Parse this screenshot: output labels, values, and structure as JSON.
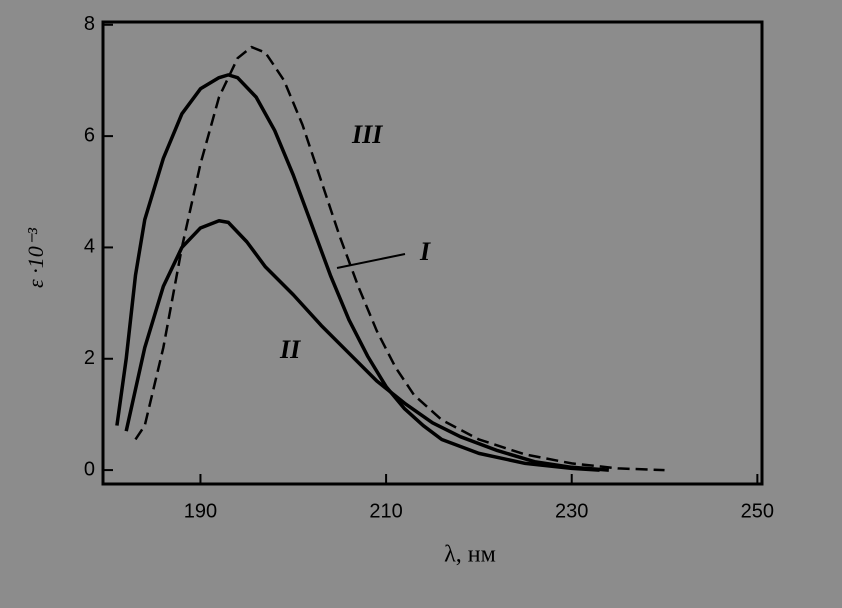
{
  "chart_data": {
    "type": "line",
    "x_label": "λ, нм",
    "y_label": "ε ·10⁻³",
    "xlim": [
      179.5,
      250.5
    ],
    "xticks": [
      190,
      210,
      230,
      250
    ],
    "ylim": [
      -0.25,
      8.05
    ],
    "yticks": [
      0,
      2,
      4,
      6,
      8
    ],
    "grid": false,
    "series": [
      {
        "name": "I",
        "color": "#000000",
        "line_style": "solid",
        "x": [
          181,
          182,
          183,
          184,
          186,
          188,
          190,
          192,
          193,
          194,
          196,
          198,
          200,
          202,
          204,
          206,
          208,
          210,
          212,
          214,
          216,
          220,
          225,
          230,
          233
        ],
        "values": [
          0.8,
          2,
          3.5,
          4.5,
          5.6,
          6.4,
          6.85,
          7.05,
          7.1,
          7.05,
          6.7,
          6.1,
          5.3,
          4.4,
          3.5,
          2.7,
          2.05,
          1.5,
          1.1,
          0.8,
          0.55,
          0.3,
          0.12,
          0.03,
          0
        ]
      },
      {
        "name": "II",
        "color": "#000000",
        "line_style": "solid",
        "x": [
          182,
          184,
          186,
          188,
          190,
          192,
          193,
          195,
          197,
          200,
          203,
          206,
          209,
          212,
          215,
          218,
          222,
          226,
          230,
          234
        ],
        "values": [
          0.7,
          2.2,
          3.3,
          4.0,
          4.35,
          4.48,
          4.45,
          4.1,
          3.65,
          3.15,
          2.6,
          2.1,
          1.6,
          1.2,
          0.85,
          0.6,
          0.35,
          0.15,
          0.05,
          0
        ]
      },
      {
        "name": "III",
        "color": "#000000",
        "line_style": "dashed",
        "x": [
          183,
          184,
          186,
          188,
          190,
          192,
          194,
          195.5,
          197,
          199,
          201,
          203,
          205,
          207,
          209,
          211,
          213,
          216,
          220,
          225,
          230,
          235,
          240
        ],
        "values": [
          0.55,
          0.8,
          2.2,
          4.0,
          5.5,
          6.7,
          7.4,
          7.6,
          7.5,
          7.0,
          6.2,
          5.2,
          4.2,
          3.3,
          2.5,
          1.85,
          1.35,
          0.9,
          0.55,
          0.28,
          0.12,
          0.03,
          0
        ]
      }
    ]
  }
}
